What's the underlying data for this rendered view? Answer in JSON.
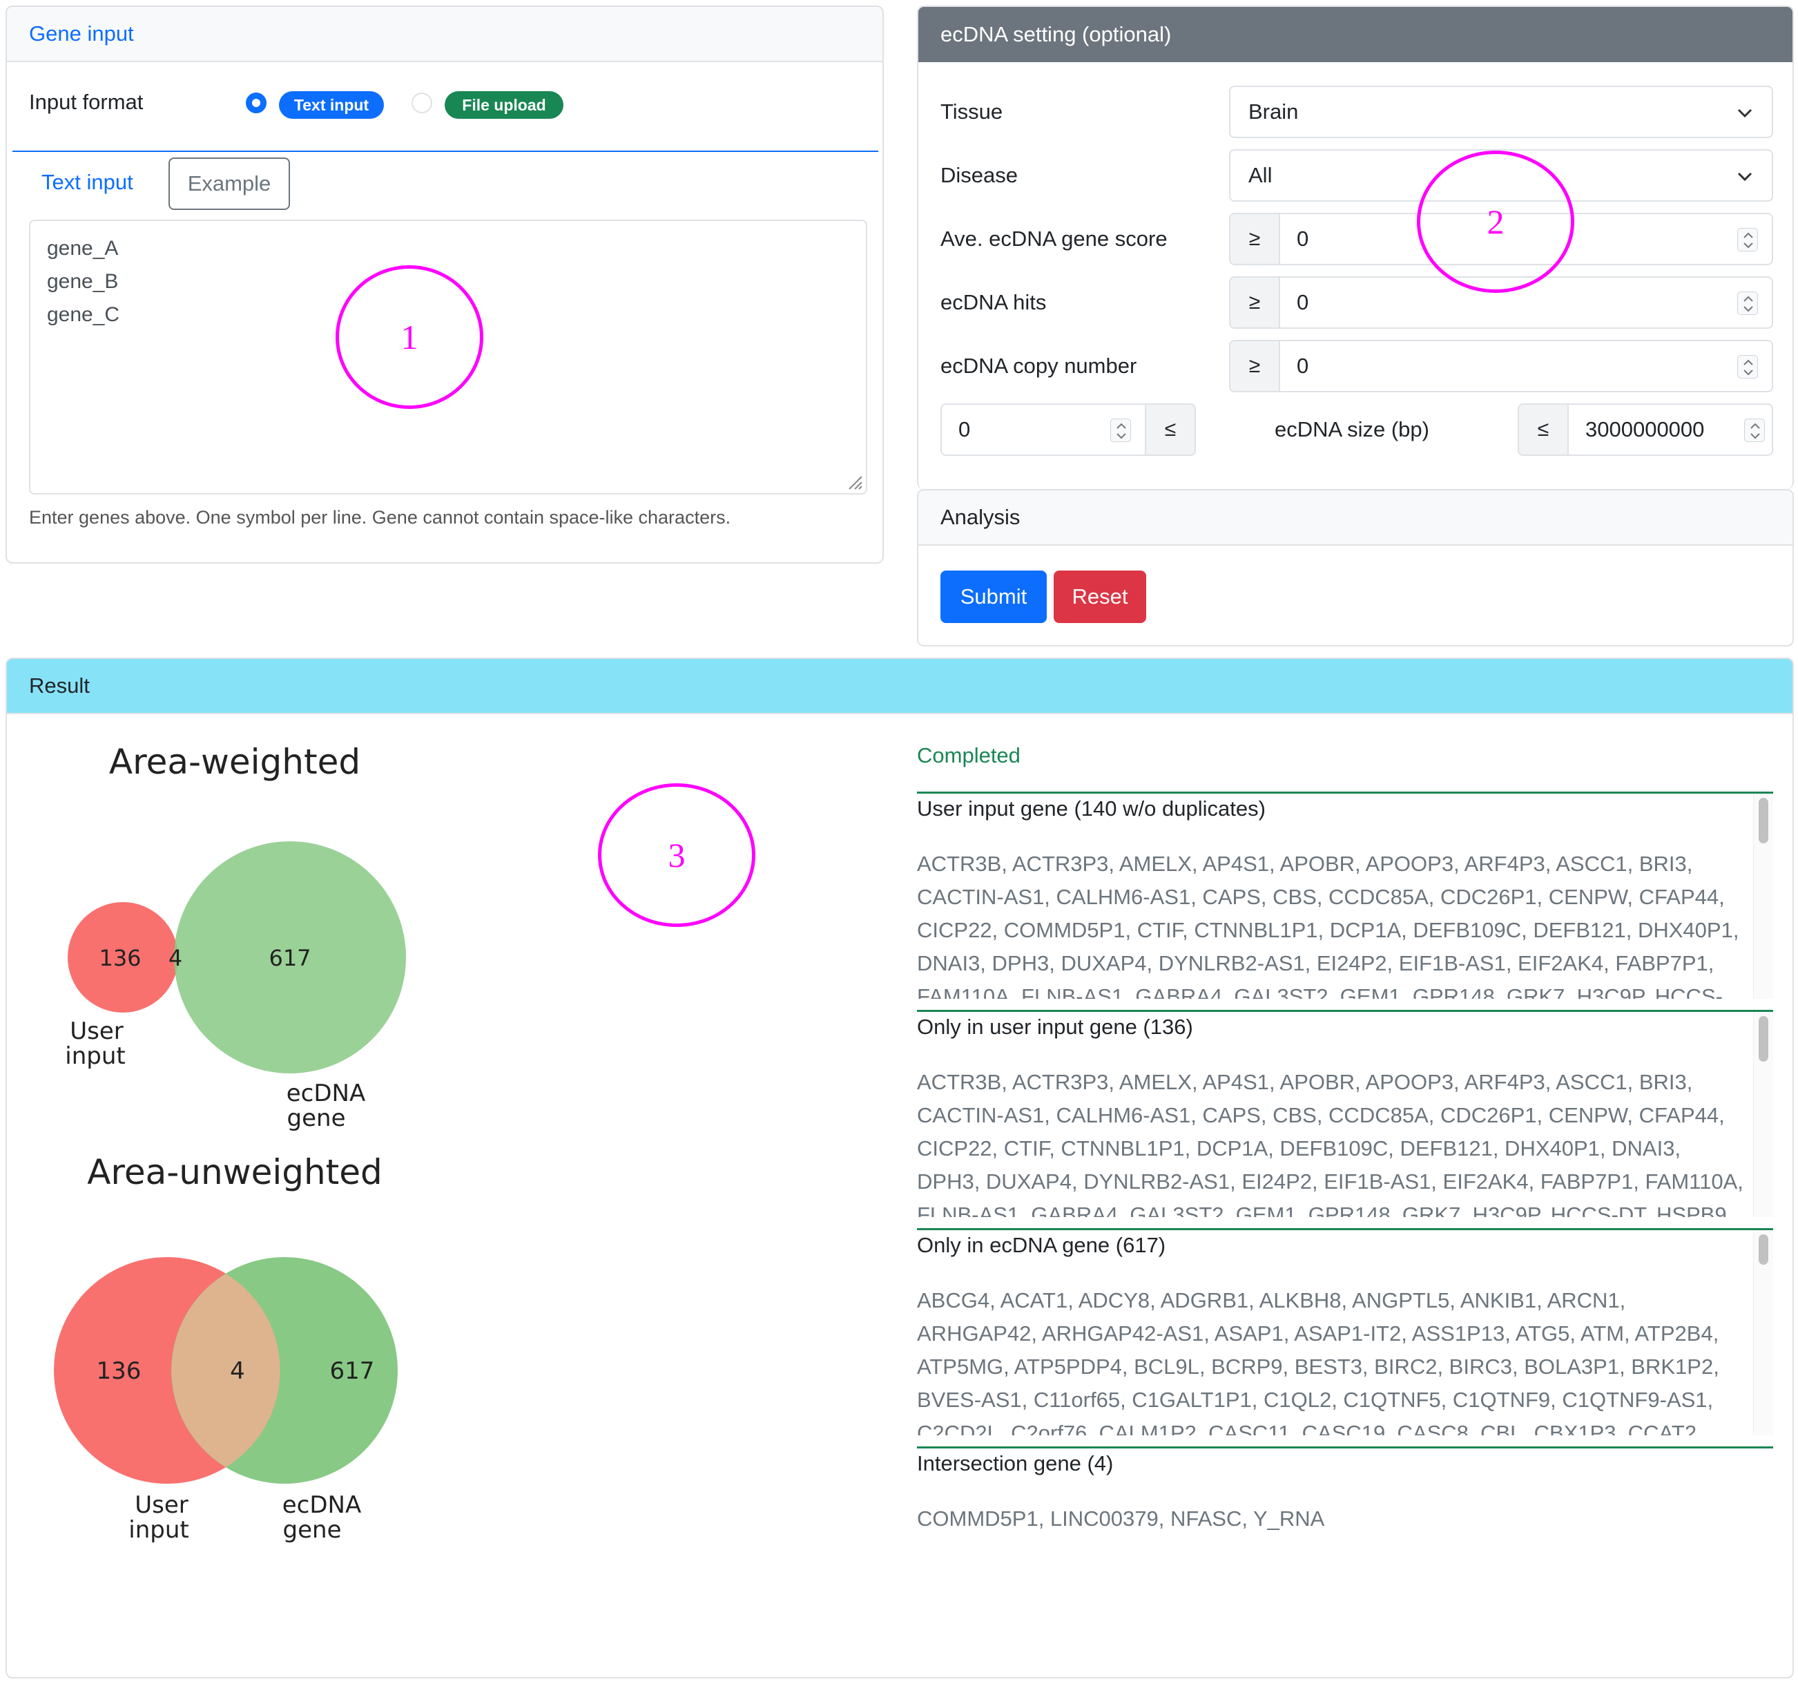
{
  "gene_input": {
    "header": "Gene input",
    "input_format_label": "Input format",
    "option_text": "Text input",
    "option_file": "File upload",
    "tab_text": "Text input",
    "tab_example": "Example",
    "textarea_lines": "gene_A\ngene_B\ngene_C",
    "help_text": "Enter genes above. One symbol per line. Gene cannot contain space-like characters."
  },
  "ecdna": {
    "header": "ecDNA setting (optional)",
    "tissue_label": "Tissue",
    "tissue_value": "Brain",
    "disease_label": "Disease",
    "disease_value": "All",
    "score_label": "Ave. ecDNA gene score",
    "score_op": "≥",
    "score_value": "0",
    "hits_label": "ecDNA hits",
    "hits_op": "≥",
    "hits_value": "0",
    "copy_label": "ecDNA copy number",
    "copy_op": "≥",
    "copy_value": "0",
    "size_min": "0",
    "size_min_op": "≤",
    "size_label": "ecDNA size (bp)",
    "size_max_op": "≤",
    "size_max": "3000000000"
  },
  "analysis": {
    "header": "Analysis",
    "submit": "Submit",
    "reset": "Reset"
  },
  "result": {
    "header": "Result",
    "status": "Completed",
    "venn_weighted_title": "Area-weighted",
    "venn_unweighted_title": "Area-unweighted",
    "user_only": "136",
    "intersection": "4",
    "ecdna_only": "617",
    "user_label_1": "User",
    "user_label_2": "input",
    "ecdna_label_1": "ecDNA",
    "ecdna_label_2": "gene",
    "sections": [
      {
        "title": "User input gene (140 w/o duplicates)",
        "genes": "ACTR3B, ACTR3P3, AMELX, AP4S1, APOBR, APOOP3, ARF4P3, ASCC1, BRI3, CACTIN-AS1, CALHM6-AS1, CAPS, CBS, CCDC85A, CDC26P1, CENPW, CFAP44, CICP22, COMMD5P1, CTIF, CTNNBL1P1, DCP1A, DEFB109C, DEFB121, DHX40P1, DNAI3, DPH3, DUXAP4, DYNLRB2-AS1, EI24P2, EIF1B-AS1, EIF2AK4, FABP7P1, FAM110A, FLNB-AS1, GABRA4, GAL3ST2, GEM1, GPR148, GRK7, H3C9P, HCCS-"
      },
      {
        "title": "Only in user input gene (136)",
        "genes": "ACTR3B, ACTR3P3, AMELX, AP4S1, APOBR, APOOP3, ARF4P3, ASCC1, BRI3, CACTIN-AS1, CALHM6-AS1, CAPS, CBS, CCDC85A, CDC26P1, CENPW, CFAP44, CICP22, CTIF, CTNNBL1P1, DCP1A, DEFB109C, DEFB121, DHX40P1, DNAI3, DPH3, DUXAP4, DYNLRB2-AS1, EI24P2, EIF1B-AS1, EIF2AK4, FABP7P1, FAM110A, FLNB-AS1, GABRA4, GAL3ST2, GEM1, GPR148, GRK7, H3C9P, HCCS-DT, HSPB9"
      },
      {
        "title": "Only in ecDNA gene (617)",
        "genes": "ABCG4, ACAT1, ADCY8, ADGRB1, ALKBH8, ANGPTL5, ANKIB1, ARCN1, ARHGAP42, ARHGAP42-AS1, ASAP1, ASAP1-IT2, ASS1P13, ATG5, ATM, ATP2B4, ATP5MG, ATP5PDP4, BCL9L, BCRP9, BEST3, BIRC2, BIRC3, BOLA3P1, BRK1P2, BVES-AS1, C11orf65, C1GALT1P1, C1QL2, C1QTNF5, C1QTNF9, C1QTNF9-AS1, C2CD2L, C2orf76, CALM1P2, CASC11, CASC19, CASC8, CBL, CBX1P3, CCAT2"
      },
      {
        "title": "Intersection gene (4)",
        "genes": "COMMD5P1, LINC00379, NFASC, Y_RNA"
      }
    ]
  },
  "annotations": [
    "1",
    "2",
    "3"
  ],
  "colors": {
    "primary": "#0d6efd",
    "success": "#198754",
    "danger": "#dc3545",
    "secondary_header": "#6c757d",
    "result_header": "#86e2f7",
    "venn_red": "#f8716f",
    "venn_green": "#88c985",
    "venn_overlap": "#ddb48e",
    "annotation": "#ff00ff"
  }
}
